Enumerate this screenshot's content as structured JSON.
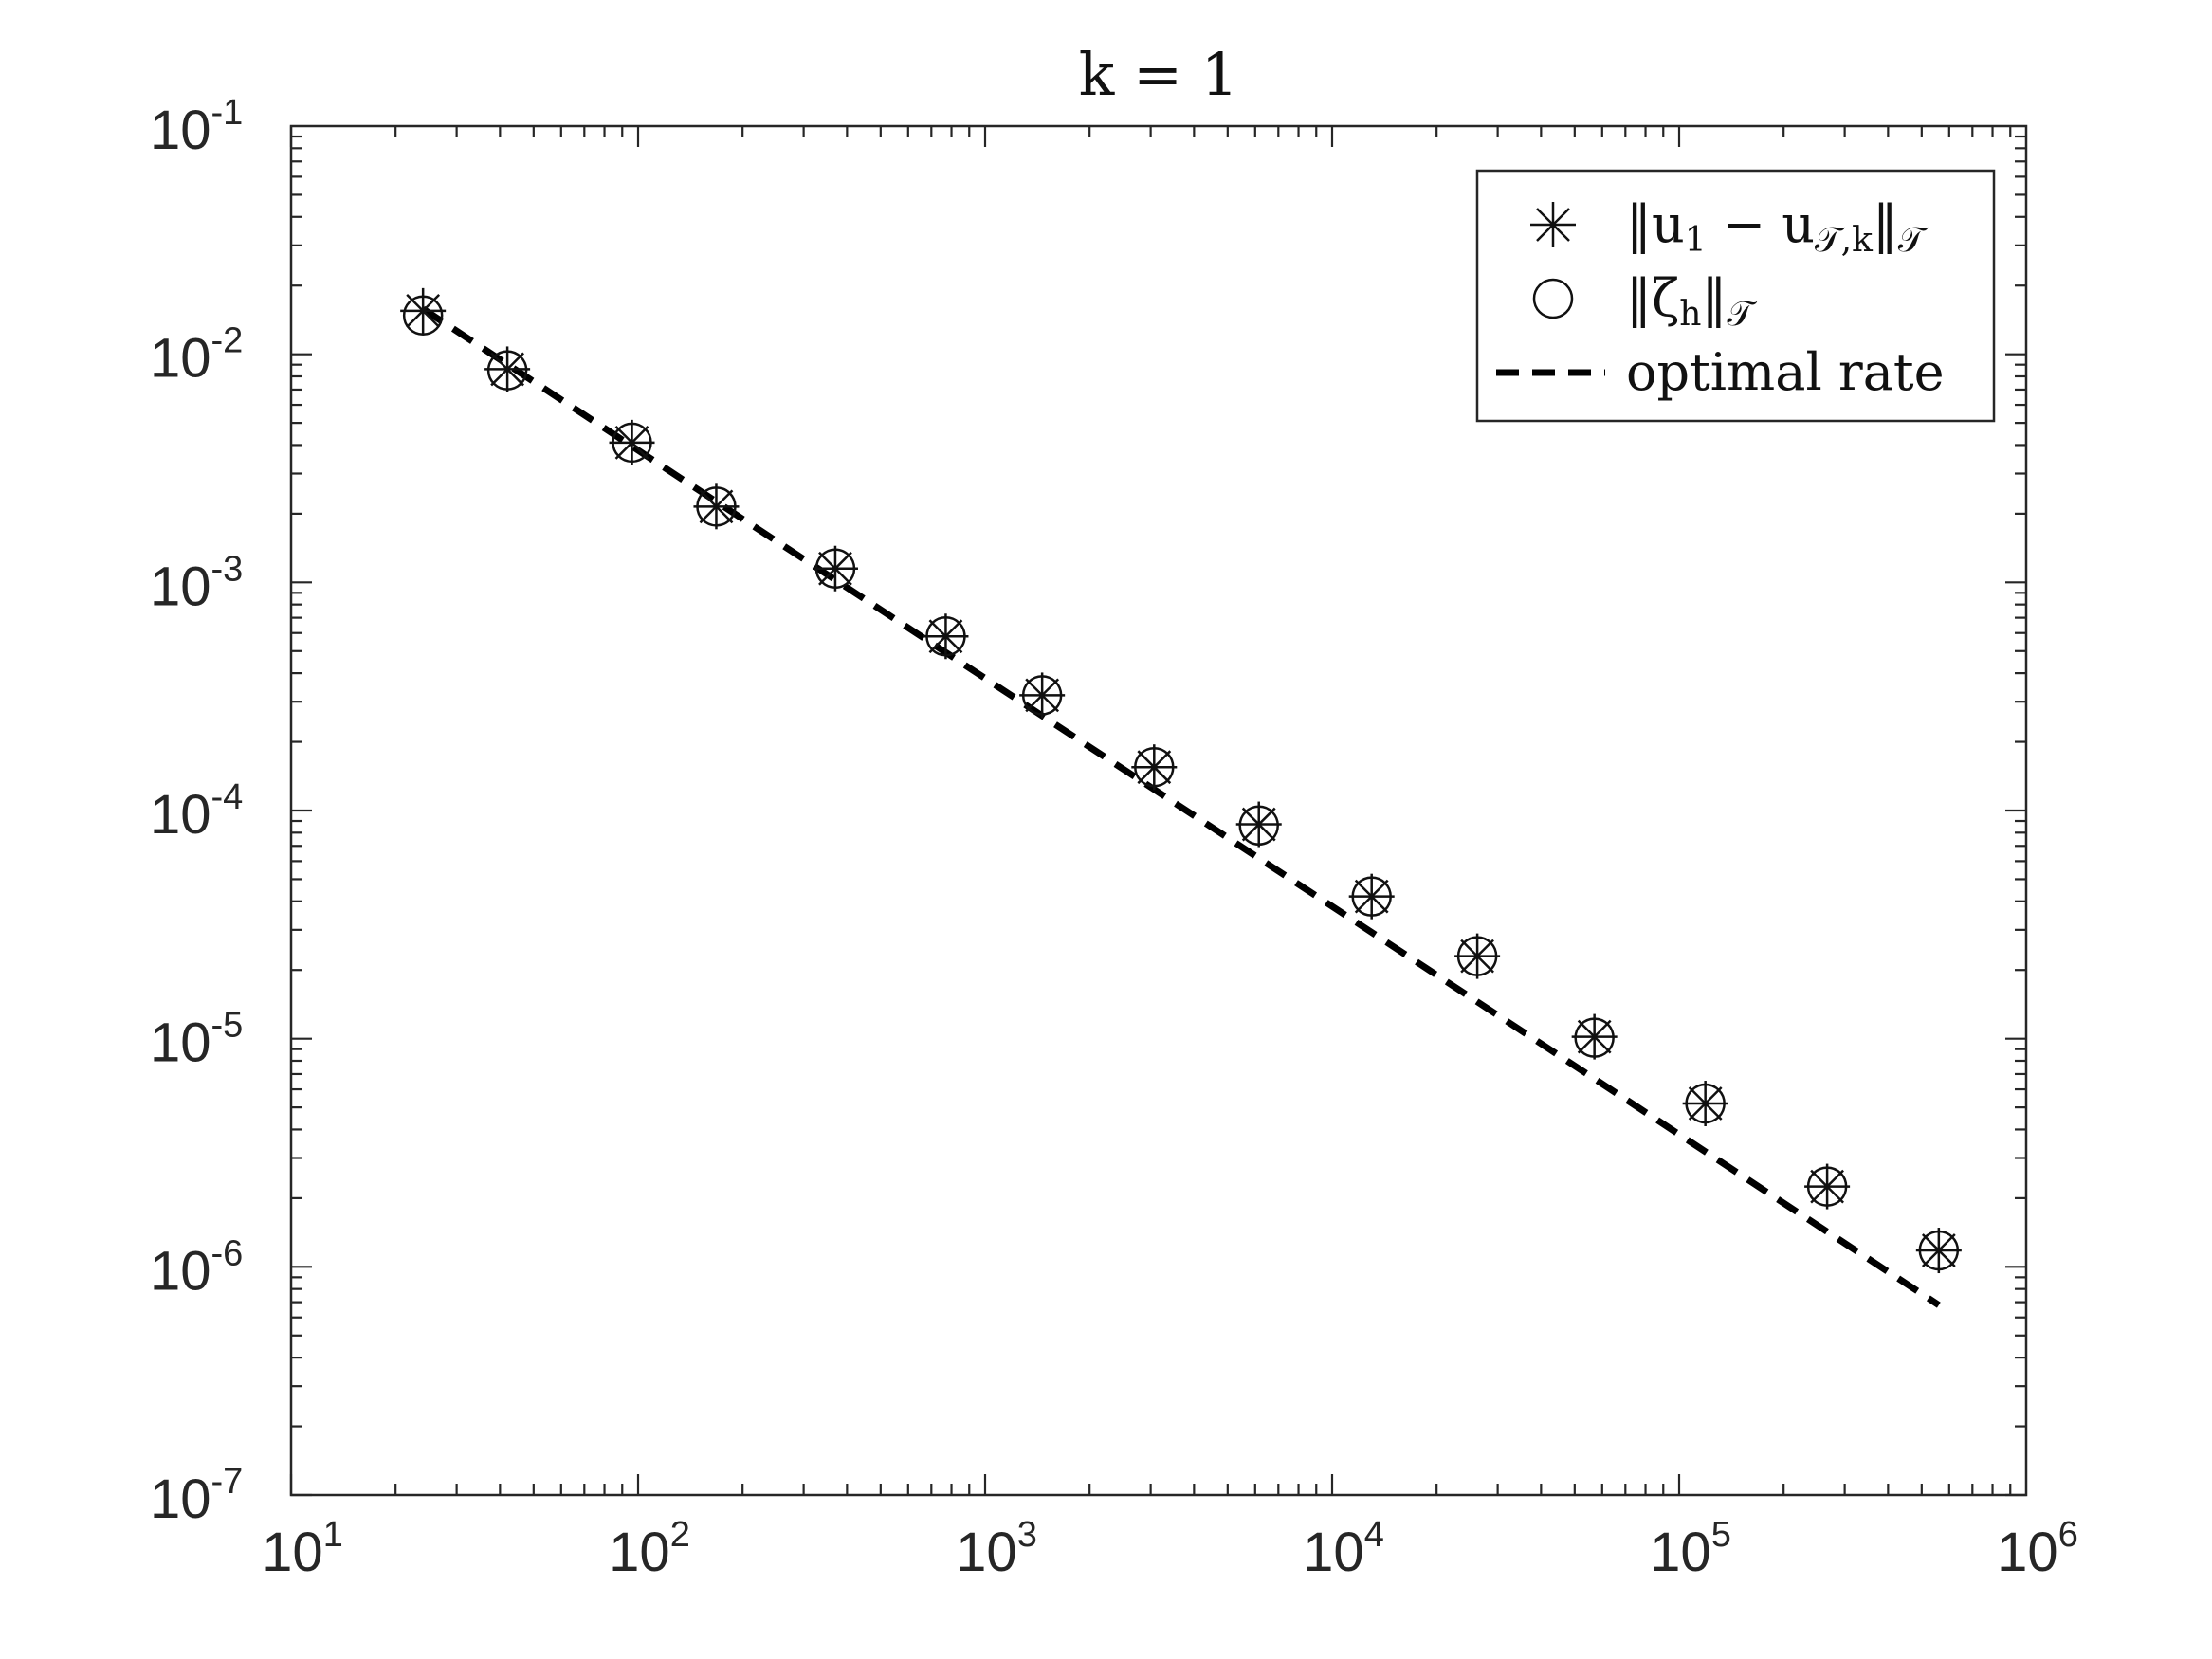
{
  "chart_data": {
    "type": "scatter",
    "title": "k = 1",
    "xlabel": "",
    "ylabel": "",
    "xscale": "log",
    "yscale": "log",
    "xlim": [
      10,
      1000000
    ],
    "ylim": [
      1e-07,
      0.1
    ],
    "grid": false,
    "legend_position": "top-right",
    "x_ticks": [
      {
        "value": 10,
        "base": "10",
        "exp": "1"
      },
      {
        "value": 100,
        "base": "10",
        "exp": "2"
      },
      {
        "value": 1000,
        "base": "10",
        "exp": "3"
      },
      {
        "value": 10000,
        "base": "10",
        "exp": "4"
      },
      {
        "value": 100000,
        "base": "10",
        "exp": "5"
      },
      {
        "value": 1000000,
        "base": "10",
        "exp": "6"
      }
    ],
    "y_ticks": [
      {
        "value": 1e-07,
        "base": "10",
        "exp": "-7"
      },
      {
        "value": 1e-06,
        "base": "10",
        "exp": "-6"
      },
      {
        "value": 1e-05,
        "base": "10",
        "exp": "-5"
      },
      {
        "value": 0.0001,
        "base": "10",
        "exp": "-4"
      },
      {
        "value": 0.001,
        "base": "10",
        "exp": "-3"
      },
      {
        "value": 0.01,
        "base": "10",
        "exp": "-2"
      },
      {
        "value": 0.1,
        "base": "10",
        "exp": "-1"
      }
    ],
    "x": [
      24,
      42,
      96,
      168,
      370,
      770,
      1460,
      3070,
      6150,
      13000,
      26200,
      57000,
      119000,
      267000,
      560000
    ],
    "series": [
      {
        "name": "‖u1 − u𝒯,k‖𝒯",
        "marker": "star",
        "values": [
          0.0155,
          0.0086,
          0.0041,
          0.00215,
          0.00115,
          0.00058,
          0.00032,
          0.000155,
          8.7e-05,
          4.2e-05,
          2.3e-05,
          1.02e-05,
          5.2e-06,
          2.25e-06,
          1.18e-06
        ]
      },
      {
        "name": "‖ζh‖𝒯",
        "marker": "circle",
        "values": [
          0.0148,
          0.0085,
          0.0041,
          0.00215,
          0.00115,
          0.00058,
          0.00032,
          0.000155,
          8.6e-05,
          4.2e-05,
          2.3e-05,
          1.01e-05,
          5.2e-06,
          2.25e-06,
          1.18e-06
        ]
      },
      {
        "name": "optimal rate",
        "marker": "dashed-line",
        "x": [
          24,
          560000
        ],
        "values": [
          0.0158,
          6.8e-07
        ]
      }
    ]
  },
  "legend": {
    "star_main": "‖u",
    "star_sub1": "1",
    "star_mid": " − u",
    "star_sub2": "𝒯,k",
    "star_end": "‖",
    "star_sub3": "𝒯",
    "circle_main": "‖ζ",
    "circle_sub1": "h",
    "circle_end": "‖",
    "circle_sub2": "𝒯",
    "line_label": "optimal rate"
  },
  "colors": {
    "marker": "#111111",
    "axis": "#262626",
    "line": "#000000"
  }
}
